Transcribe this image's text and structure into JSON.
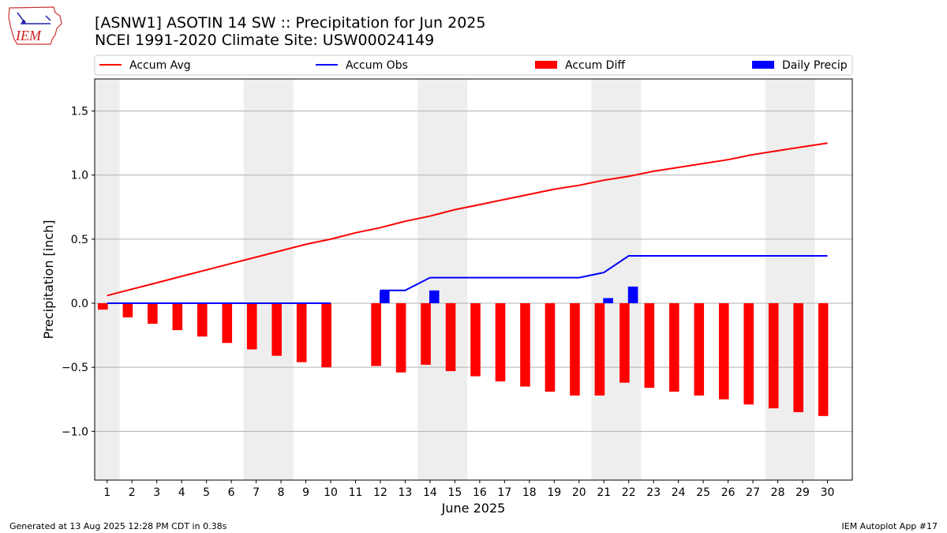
{
  "header": {
    "title_line1": "[ASNW1] ASOTIN 14 SW :: Precipitation for Jun 2025",
    "title_line2": "NCEI 1991-2020 Climate Site: USW00024149"
  },
  "logo": {
    "text": "IEM",
    "icon": "iem-iowa-logo-icon"
  },
  "footer": {
    "generated": "Generated at 13 Aug 2025 12:28 PM CDT in 0.38s",
    "app": "IEM Autoplot App #17"
  },
  "colors": {
    "avg": "#ff0000",
    "obs": "#0000ff",
    "diff": "#ff0000",
    "daily": "#0000ff",
    "shade": "#eeeeee",
    "grid": "#b0b0b0"
  },
  "chart_data": {
    "type": "bar",
    "xlabel": "June 2025",
    "ylabel": "Precipitation [inch]",
    "ylim": [
      -1.38,
      1.75
    ],
    "yticks": [
      1.5,
      1.0,
      0.5,
      0.0,
      -0.5,
      -1.0
    ],
    "ytick_labels": [
      "1.5",
      "1.0",
      "0.5",
      "0.0",
      "−1.0"
    ],
    "ytick_labels_full": [
      "1.5",
      "1.0",
      "0.5",
      "0.0",
      "−0.5",
      "−1.0"
    ],
    "xlim": [
      0.5,
      31.0
    ],
    "grid": "y-axis",
    "legend_placement": "top",
    "weekends": [
      [
        0.5,
        1.5
      ],
      [
        6.5,
        8.5
      ],
      [
        13.5,
        15.5
      ],
      [
        20.5,
        22.5
      ],
      [
        27.5,
        29.5
      ]
    ],
    "x": [
      1,
      2,
      3,
      4,
      5,
      6,
      7,
      8,
      9,
      10,
      11,
      12,
      13,
      14,
      15,
      16,
      17,
      18,
      19,
      20,
      21,
      22,
      23,
      24,
      25,
      26,
      27,
      28,
      29,
      30
    ],
    "series": [
      {
        "name": "Accum Avg",
        "kind": "line",
        "values": [
          0.06,
          0.11,
          0.16,
          0.21,
          0.26,
          0.31,
          0.36,
          0.41,
          0.46,
          0.5,
          0.55,
          0.59,
          0.64,
          0.68,
          0.73,
          0.77,
          0.81,
          0.85,
          0.89,
          0.92,
          0.96,
          0.99,
          1.03,
          1.06,
          1.09,
          1.12,
          1.16,
          1.19,
          1.22,
          1.25
        ]
      },
      {
        "name": "Accum Obs",
        "kind": "line",
        "values": [
          0.0,
          0.0,
          0.0,
          0.0,
          0.0,
          0.0,
          0.0,
          0.0,
          0.0,
          0.0,
          null,
          0.1,
          0.1,
          0.2,
          0.2,
          0.2,
          0.2,
          0.2,
          0.2,
          0.2,
          0.24,
          0.37,
          0.37,
          0.37,
          0.37,
          0.37,
          0.37,
          0.37,
          0.37,
          0.37
        ]
      },
      {
        "name": "Accum Diff",
        "kind": "bar",
        "values": [
          -0.05,
          -0.11,
          -0.16,
          -0.21,
          -0.26,
          -0.31,
          -0.36,
          -0.41,
          -0.46,
          -0.5,
          null,
          -0.49,
          -0.54,
          -0.48,
          -0.53,
          -0.57,
          -0.61,
          -0.65,
          -0.69,
          -0.72,
          -0.72,
          -0.62,
          -0.66,
          -0.69,
          -0.72,
          -0.75,
          -0.79,
          -0.82,
          -0.85,
          -0.88
        ]
      },
      {
        "name": "Daily Precip",
        "kind": "bar",
        "values": [
          0,
          0,
          0,
          0,
          0,
          0,
          0,
          0,
          0,
          0,
          0,
          0.1,
          0,
          0.1,
          0,
          0,
          0,
          0,
          0,
          0,
          0.04,
          0.13,
          0,
          0,
          0,
          0,
          0,
          0,
          0,
          0
        ]
      }
    ]
  }
}
